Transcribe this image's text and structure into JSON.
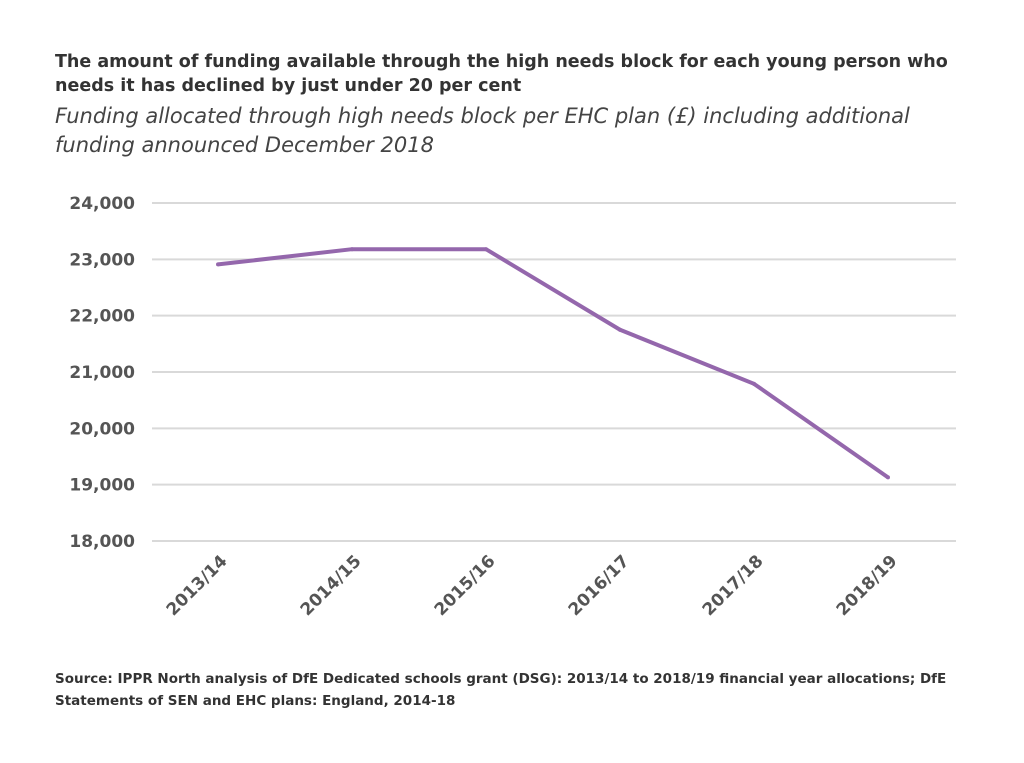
{
  "chart_data": {
    "type": "line",
    "title": "The amount of funding available through the high needs block for each young person who needs it has declined by just under 20 per cent",
    "subtitle": "Funding allocated through high needs block per EHC plan (£) including additional funding announced December 2018",
    "categories": [
      "2013/14",
      "2014/15",
      "2015/16",
      "2016/17",
      "2017/18",
      "2018/19"
    ],
    "series": [
      {
        "values": [
          22910,
          23180,
          23180,
          21750,
          20790,
          19130
        ],
        "color": "#9467ac"
      }
    ],
    "yticks": [
      "24,000",
      "23,000",
      "22,000",
      "21,000",
      "20,000",
      "19,000",
      "18,000"
    ],
    "ylim": [
      18000,
      24000
    ],
    "grid": true,
    "xlabel": "",
    "ylabel": ""
  },
  "source": "Source: IPPR North analysis of DfE Dedicated schools grant (DSG): 2013/14 to 2018/19 financial year allocations; DfE Statements of SEN and EHC plans: England, 2014-18"
}
